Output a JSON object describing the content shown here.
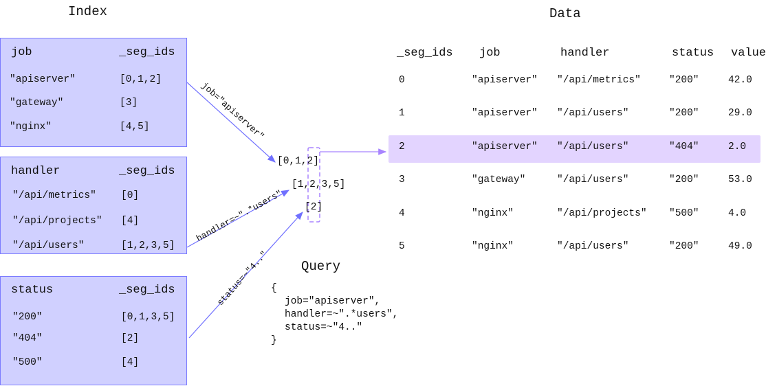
{
  "index": {
    "title": "Index",
    "tables": [
      {
        "key": "job",
        "ids_header": "_seg_ids",
        "rows": [
          {
            "value": "\"apiserver\"",
            "ids": "[0,1,2]"
          },
          {
            "value": "\"gateway\"",
            "ids": "[3]"
          },
          {
            "value": "\"nginx\"",
            "ids": "[4,5]"
          }
        ]
      },
      {
        "key": "handler",
        "ids_header": "_seg_ids",
        "rows": [
          {
            "value": "\"/api/metrics\"",
            "ids": "[0]"
          },
          {
            "value": "\"/api/projects\"",
            "ids": "[4]"
          },
          {
            "value": "\"/api/users\"",
            "ids": "[1,2,3,5]"
          }
        ]
      },
      {
        "key": "status",
        "ids_header": "_seg_ids",
        "rows": [
          {
            "value": "\"200\"",
            "ids": "[0,1,3,5]"
          },
          {
            "value": "\"404\"",
            "ids": "[2]"
          },
          {
            "value": "\"500\"",
            "ids": "[4]"
          }
        ]
      }
    ]
  },
  "edges": {
    "job": "job=\"apiserver\"",
    "handler": "handler=~\".*users\"",
    "status": "status=~\"4..\""
  },
  "results": [
    "[0,1,2]",
    "[1,2,3,5]",
    "[2]"
  ],
  "query": {
    "title": "Query",
    "lines": [
      "{",
      "job=\"apiserver\",",
      "handler=~\".*users\",",
      "status=~\"4..\"",
      "}"
    ]
  },
  "data": {
    "title": "Data",
    "columns": [
      "_seg_ids",
      "job",
      "handler",
      "status",
      "value"
    ],
    "rows": [
      [
        "0",
        "\"apiserver\"",
        "\"/api/metrics\"",
        "\"200\"",
        "42.0"
      ],
      [
        "1",
        "\"apiserver\"",
        "\"/api/users\"",
        "\"200\"",
        "29.0"
      ],
      [
        "2",
        "\"apiserver\"",
        "\"/api/users\"",
        "\"404\"",
        "2.0"
      ],
      [
        "3",
        "\"gateway\"",
        "\"/api/users\"",
        "\"200\"",
        "53.0"
      ],
      [
        "4",
        "\"nginx\"",
        "\"/api/projects\"",
        "\"500\"",
        "4.0"
      ],
      [
        "5",
        "\"nginx\"",
        "\"/api/users\"",
        "\"200\"",
        "49.0"
      ]
    ],
    "highlighted_row": 2
  },
  "colors": {
    "box_fill": "#d0d0ff",
    "box_border": "#7b7bff",
    "arrow": "#7070ff",
    "highlight": "#e3d4ff",
    "result_marker": "#a884ff"
  }
}
